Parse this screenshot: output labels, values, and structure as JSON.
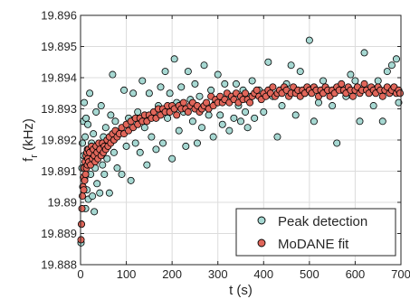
{
  "chart_data": {
    "type": "scatter",
    "title": "",
    "xlabel": "t (s)",
    "ylabel": "f",
    "ylabel_subscript": "r",
    "ylabel_unit": " (kHz)",
    "xlim": [
      0,
      700
    ],
    "ylim": [
      19.888,
      19.896
    ],
    "xticks": [
      0,
      100,
      200,
      300,
      400,
      500,
      600,
      700
    ],
    "xtick_labels": [
      "0",
      "100",
      "200",
      "300",
      "400",
      "500",
      "600",
      "700"
    ],
    "yticks": [
      19.888,
      19.889,
      19.89,
      19.891,
      19.892,
      19.893,
      19.894,
      19.895,
      19.896
    ],
    "ytick_labels": [
      "19.888",
      "19.889",
      "19.89",
      "19.891",
      "19.892",
      "19.893",
      "19.894",
      "19.895",
      "19.896"
    ],
    "grid": true,
    "legend_position": "bottom-right",
    "series": [
      {
        "name": "Peak detection",
        "color": "#a6d8d2",
        "marker": "circle",
        "points": [
          [
            1,
            19.8887
          ],
          [
            2,
            19.8893
          ],
          [
            3,
            19.8911
          ],
          [
            4,
            19.8919
          ],
          [
            5,
            19.8905
          ],
          [
            6,
            19.8926
          ],
          [
            7,
            19.8915
          ],
          [
            8,
            19.8932
          ],
          [
            9,
            19.8908
          ],
          [
            10,
            19.8921
          ],
          [
            11,
            19.8898
          ],
          [
            12,
            19.8927
          ],
          [
            13,
            19.8912
          ],
          [
            14,
            19.8904
          ],
          [
            15,
            19.8917
          ],
          [
            16,
            19.8925
          ],
          [
            17,
            19.8901
          ],
          [
            18,
            19.8913
          ],
          [
            20,
            19.8935
          ],
          [
            22,
            19.8909
          ],
          [
            24,
            19.8919
          ],
          [
            26,
            19.8902
          ],
          [
            28,
            19.8922
          ],
          [
            30,
            19.8897
          ],
          [
            32,
            19.8911
          ],
          [
            34,
            19.8929
          ],
          [
            36,
            19.8906
          ],
          [
            38,
            19.8918
          ],
          [
            40,
            19.8915
          ],
          [
            42,
            19.8903
          ],
          [
            45,
            19.8931
          ],
          [
            48,
            19.8912
          ],
          [
            50,
            19.8921
          ],
          [
            52,
            19.8909
          ],
          [
            55,
            19.8924
          ],
          [
            58,
            19.8914
          ],
          [
            60,
            19.8919
          ],
          [
            63,
            19.8903
          ],
          [
            66,
            19.8928
          ],
          [
            70,
            19.8941
          ],
          [
            73,
            19.8916
          ],
          [
            76,
            19.8926
          ],
          [
            80,
            19.8911
          ],
          [
            85,
            19.8922
          ],
          [
            90,
            19.8909
          ],
          [
            95,
            19.8936
          ],
          [
            100,
            19.8918
          ],
          [
            105,
            19.8927
          ],
          [
            110,
            19.8907
          ],
          [
            115,
            19.8935
          ],
          [
            120,
            19.8919
          ],
          [
            125,
            19.8929
          ],
          [
            130,
            19.8916
          ],
          [
            135,
            19.8939
          ],
          [
            140,
            19.8924
          ],
          [
            145,
            19.8912
          ],
          [
            150,
            19.8935
          ],
          [
            155,
            19.8921
          ],
          [
            160,
            19.8929
          ],
          [
            165,
            19.8917
          ],
          [
            170,
            19.8931
          ],
          [
            175,
            19.8937
          ],
          [
            180,
            19.8919
          ],
          [
            185,
            19.8942
          ],
          [
            190,
            19.8927
          ],
          [
            195,
            19.8935
          ],
          [
            200,
            19.8914
          ],
          [
            205,
            19.8946
          ],
          [
            210,
            19.8932
          ],
          [
            215,
            19.8923
          ],
          [
            220,
            19.8937
          ],
          [
            225,
            19.8929
          ],
          [
            230,
            19.8918
          ],
          [
            235,
            19.8942
          ],
          [
            240,
            19.8933
          ],
          [
            245,
            19.8926
          ],
          [
            250,
            19.8938
          ],
          [
            255,
            19.8919
          ],
          [
            260,
            19.8934
          ],
          [
            265,
            19.8924
          ],
          [
            270,
            19.8944
          ],
          [
            275,
            19.8931
          ],
          [
            280,
            19.8928
          ],
          [
            285,
            19.8936
          ],
          [
            290,
            19.8921
          ],
          [
            295,
            19.8932
          ],
          [
            300,
            19.8941
          ],
          [
            305,
            19.8928
          ],
          [
            310,
            19.8925
          ],
          [
            315,
            19.8938
          ],
          [
            320,
            19.8933
          ],
          [
            325,
            19.8923
          ],
          [
            330,
            19.8934
          ],
          [
            335,
            19.8927
          ],
          [
            340,
            19.8938
          ],
          [
            345,
            19.8931
          ],
          [
            350,
            19.8926
          ],
          [
            355,
            19.8936
          ],
          [
            360,
            19.8929
          ],
          [
            365,
            19.8924
          ],
          [
            370,
            19.8934
          ],
          [
            375,
            19.8939
          ],
          [
            380,
            19.8927
          ],
          [
            390,
            19.8936
          ],
          [
            400,
            19.8929
          ],
          [
            410,
            19.8945
          ],
          [
            420,
            19.8934
          ],
          [
            430,
            19.8921
          ],
          [
            440,
            19.8931
          ],
          [
            450,
            19.8938
          ],
          [
            460,
            19.8944
          ],
          [
            470,
            19.8928
          ],
          [
            480,
            19.8942
          ],
          [
            490,
            19.8935
          ],
          [
            500,
            19.8952
          ],
          [
            510,
            19.8926
          ],
          [
            520,
            19.8932
          ],
          [
            530,
            19.8939
          ],
          [
            540,
            19.8936
          ],
          [
            550,
            19.8931
          ],
          [
            560,
            19.8919
          ],
          [
            570,
            19.8936
          ],
          [
            580,
            19.8934
          ],
          [
            590,
            19.8941
          ],
          [
            600,
            19.8939
          ],
          [
            610,
            19.8926
          ],
          [
            620,
            19.8948
          ],
          [
            630,
            19.8936
          ],
          [
            640,
            19.8931
          ],
          [
            650,
            19.8939
          ],
          [
            660,
            19.8926
          ],
          [
            670,
            19.8942
          ],
          [
            680,
            19.8944
          ],
          [
            690,
            19.8946
          ],
          [
            695,
            19.8932
          ]
        ]
      },
      {
        "name": "MoDANE fit",
        "color": "#e0665a",
        "marker": "circle",
        "points": [
          [
            1,
            19.8888
          ],
          [
            2,
            19.8893
          ],
          [
            3,
            19.8898
          ],
          [
            4,
            19.8902
          ],
          [
            5,
            19.8905
          ],
          [
            6,
            19.8908
          ],
          [
            7,
            19.8904
          ],
          [
            8,
            19.8911
          ],
          [
            9,
            19.8907
          ],
          [
            10,
            19.8913
          ],
          [
            11,
            19.8909
          ],
          [
            12,
            19.8915
          ],
          [
            13,
            19.8911
          ],
          [
            14,
            19.8916
          ],
          [
            15,
            19.8912
          ],
          [
            16,
            19.8914
          ],
          [
            17,
            19.8917
          ],
          [
            18,
            19.8913
          ],
          [
            20,
            19.8916
          ],
          [
            22,
            19.8912
          ],
          [
            24,
            19.8918
          ],
          [
            26,
            19.8914
          ],
          [
            28,
            19.8917
          ],
          [
            30,
            19.8915
          ],
          [
            32,
            19.8913
          ],
          [
            34,
            19.8918
          ],
          [
            36,
            19.8916
          ],
          [
            38,
            19.8914
          ],
          [
            40,
            19.8919
          ],
          [
            42,
            19.8917
          ],
          [
            45,
            19.8915
          ],
          [
            48,
            19.8919
          ],
          [
            50,
            19.8916
          ],
          [
            52,
            19.8918
          ],
          [
            55,
            19.8917
          ],
          [
            58,
            19.892
          ],
          [
            60,
            19.8918
          ],
          [
            63,
            19.8921
          ],
          [
            66,
            19.8919
          ],
          [
            70,
            19.8922
          ],
          [
            73,
            19.892
          ],
          [
            76,
            19.8923
          ],
          [
            80,
            19.8921
          ],
          [
            85,
            19.8922
          ],
          [
            90,
            19.8924
          ],
          [
            95,
            19.8922
          ],
          [
            100,
            19.8925
          ],
          [
            105,
            19.8923
          ],
          [
            110,
            19.8926
          ],
          [
            115,
            19.8924
          ],
          [
            120,
            19.8927
          ],
          [
            125,
            19.8925
          ],
          [
            130,
            19.8927
          ],
          [
            135,
            19.8926
          ],
          [
            140,
            19.8928
          ],
          [
            145,
            19.8926
          ],
          [
            150,
            19.8928
          ],
          [
            155,
            19.8927
          ],
          [
            160,
            19.8929
          ],
          [
            165,
            19.8927
          ],
          [
            170,
            19.893
          ],
          [
            175,
            19.8928
          ],
          [
            180,
            19.893
          ],
          [
            185,
            19.8929
          ],
          [
            190,
            19.8931
          ],
          [
            195,
            19.8929
          ],
          [
            200,
            19.8931
          ],
          [
            205,
            19.893
          ],
          [
            210,
            19.8928
          ],
          [
            215,
            19.8931
          ],
          [
            220,
            19.893
          ],
          [
            225,
            19.8932
          ],
          [
            230,
            19.893
          ],
          [
            235,
            19.8929
          ],
          [
            240,
            19.8931
          ],
          [
            245,
            19.8932
          ],
          [
            250,
            19.893
          ],
          [
            255,
            19.8931
          ],
          [
            260,
            19.8929
          ],
          [
            265,
            19.893
          ],
          [
            270,
            19.8931
          ],
          [
            275,
            19.8932
          ],
          [
            280,
            19.893
          ],
          [
            285,
            19.8934
          ],
          [
            290,
            19.8931
          ],
          [
            295,
            19.8933
          ],
          [
            300,
            19.8932
          ],
          [
            305,
            19.8934
          ],
          [
            310,
            19.8932
          ],
          [
            315,
            19.8933
          ],
          [
            320,
            19.8935
          ],
          [
            325,
            19.8932
          ],
          [
            330,
            19.8934
          ],
          [
            335,
            19.8933
          ],
          [
            340,
            19.8935
          ],
          [
            345,
            19.8932
          ],
          [
            350,
            19.8934
          ],
          [
            355,
            19.8933
          ],
          [
            360,
            19.8935
          ],
          [
            365,
            19.8933
          ],
          [
            370,
            19.8932
          ],
          [
            375,
            19.8934
          ],
          [
            380,
            19.8935
          ],
          [
            385,
            19.8936
          ],
          [
            390,
            19.8934
          ],
          [
            395,
            19.8933
          ],
          [
            400,
            19.8935
          ],
          [
            405,
            19.8934
          ],
          [
            410,
            19.8936
          ],
          [
            415,
            19.8935
          ],
          [
            420,
            19.8937
          ],
          [
            425,
            19.8934
          ],
          [
            430,
            19.8935
          ],
          [
            435,
            19.8936
          ],
          [
            440,
            19.8935
          ],
          [
            445,
            19.8937
          ],
          [
            450,
            19.8936
          ],
          [
            455,
            19.8934
          ],
          [
            460,
            19.8935
          ],
          [
            465,
            19.8937
          ],
          [
            470,
            19.8935
          ],
          [
            475,
            19.8936
          ],
          [
            480,
            19.8934
          ],
          [
            485,
            19.8936
          ],
          [
            490,
            19.8935
          ],
          [
            495,
            19.8937
          ],
          [
            500,
            19.8936
          ],
          [
            505,
            19.8935
          ],
          [
            510,
            19.8937
          ],
          [
            515,
            19.8936
          ],
          [
            520,
            19.8934
          ],
          [
            525,
            19.8936
          ],
          [
            530,
            19.8935
          ],
          [
            535,
            19.8937
          ],
          [
            540,
            19.8936
          ],
          [
            545,
            19.8934
          ],
          [
            550,
            19.8936
          ],
          [
            555,
            19.8935
          ],
          [
            560,
            19.8937
          ],
          [
            565,
            19.8936
          ],
          [
            570,
            19.8938
          ],
          [
            575,
            19.8936
          ],
          [
            580,
            19.8935
          ],
          [
            585,
            19.8937
          ],
          [
            590,
            19.8936
          ],
          [
            595,
            19.8934
          ],
          [
            600,
            19.8936
          ],
          [
            605,
            19.8937
          ],
          [
            610,
            19.8935
          ],
          [
            615,
            19.8936
          ],
          [
            620,
            19.8938
          ],
          [
            625,
            19.8936
          ],
          [
            630,
            19.8935
          ],
          [
            635,
            19.8937
          ],
          [
            640,
            19.8936
          ],
          [
            645,
            19.8935
          ],
          [
            650,
            19.8937
          ],
          [
            655,
            19.8936
          ],
          [
            660,
            19.8934
          ],
          [
            665,
            19.8936
          ],
          [
            670,
            19.8937
          ],
          [
            675,
            19.8935
          ],
          [
            680,
            19.8936
          ],
          [
            685,
            19.8937
          ],
          [
            690,
            19.8935
          ],
          [
            695,
            19.8936
          ],
          [
            698,
            19.8935
          ]
        ]
      }
    ]
  }
}
